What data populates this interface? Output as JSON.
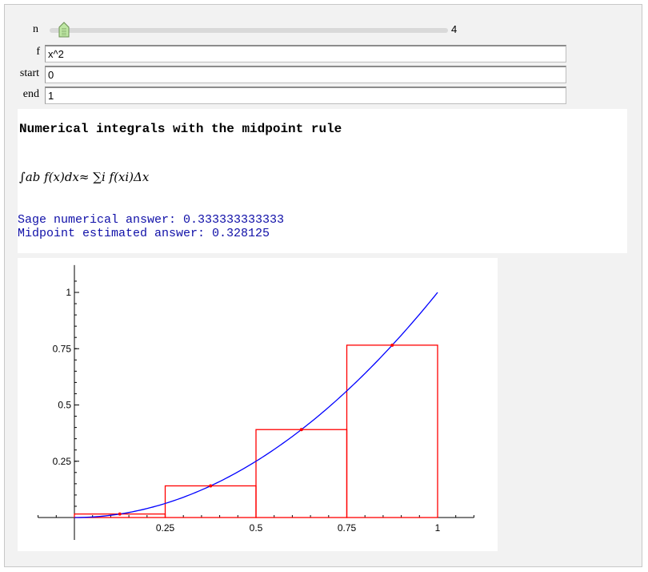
{
  "controls": {
    "n": {
      "label": "n",
      "value": "4",
      "min": 1,
      "max": 100,
      "level": 0.03
    },
    "f": {
      "label": "f",
      "value": "x^2"
    },
    "start": {
      "label": "start",
      "value": "0"
    },
    "end": {
      "label": "end",
      "value": "1"
    }
  },
  "output": {
    "heading": "Numerical integrals with the midpoint rule",
    "formula": "∫ab f(x)dx≈ ∑i f(xi)Δx",
    "sage_answer": "Sage numerical answer: 0.333333333333",
    "midpoint_answer": "Midpoint estimated answer: 0.328125"
  },
  "colors": {
    "curve": "#0000ff",
    "rects": "#ff0000",
    "answer_text": "#1010a8"
  },
  "chart_data": {
    "type": "line",
    "function": "x^2",
    "xlim": [
      -0.1,
      1.1
    ],
    "ylim": [
      0,
      1.1
    ],
    "x_ticks": [
      0.25,
      0.5,
      0.75,
      1
    ],
    "x_tick_labels": [
      "0.25",
      "0.5",
      "0.75",
      "1"
    ],
    "y_ticks": [
      0.25,
      0.5,
      0.75,
      1
    ],
    "y_tick_labels": [
      "0.25",
      "0.5",
      "0.75",
      "1"
    ],
    "curve": {
      "x_start": 0,
      "x_end": 1
    },
    "rectangles": [
      {
        "x0": 0,
        "x1": 0.25,
        "height": 0.015625,
        "midpoint": 0.125
      },
      {
        "x0": 0.25,
        "x1": 0.5,
        "height": 0.140625,
        "midpoint": 0.375
      },
      {
        "x0": 0.5,
        "x1": 0.75,
        "height": 0.390625,
        "midpoint": 0.625
      },
      {
        "x0": 0.75,
        "x1": 1,
        "height": 0.765625,
        "midpoint": 0.875
      }
    ],
    "grid": false
  }
}
